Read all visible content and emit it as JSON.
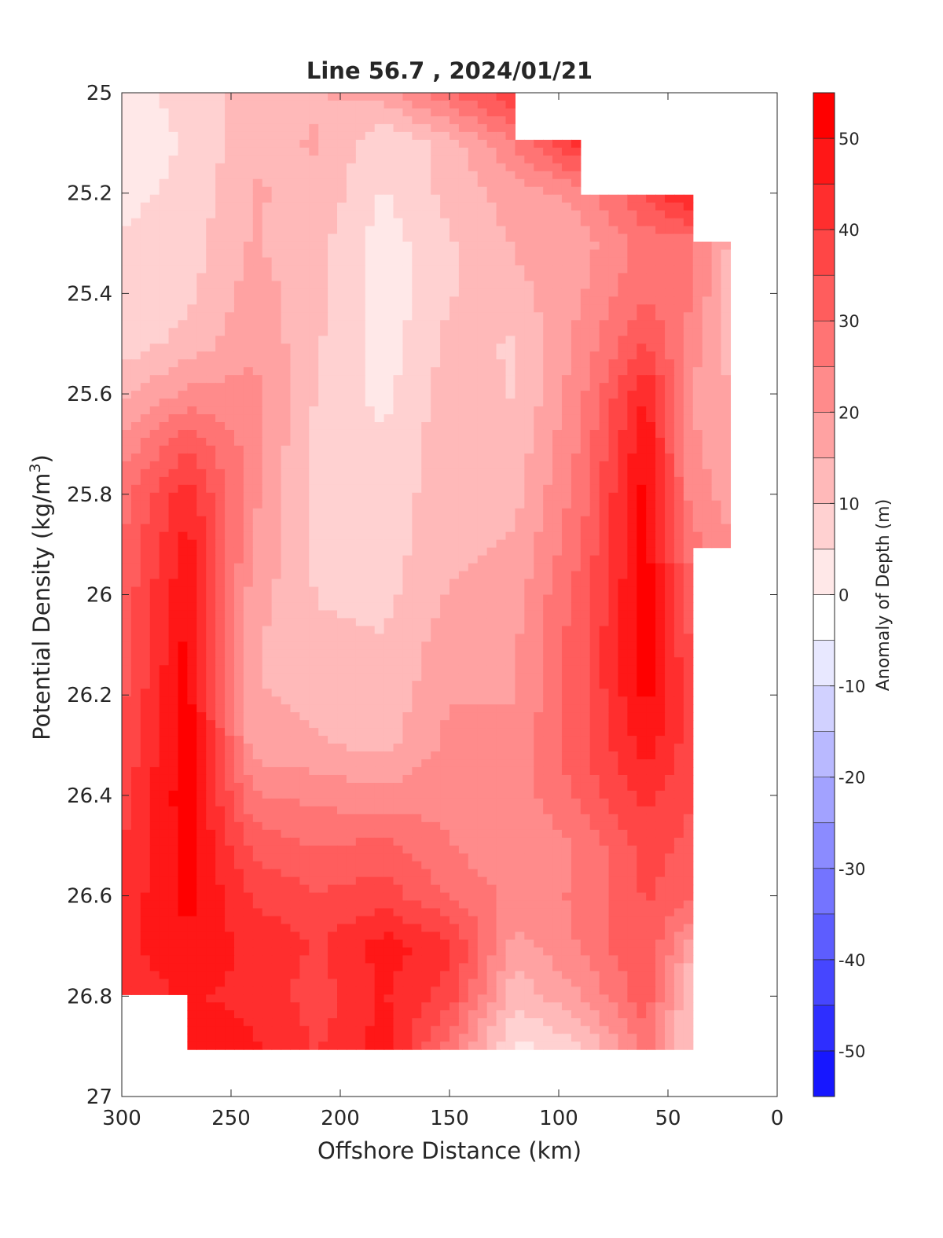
{
  "chart_data": {
    "type": "heatmap",
    "subtype": "filled-contour",
    "title": "Line 56.7 , 2024/01/21",
    "xlabel": "Offshore Distance (km)",
    "ylabel_main": "Potential Density (kg/m",
    "ylabel_sup": "3",
    "ylabel_close": ")",
    "colorbar_label": "Anomaly of Depth (m)",
    "x_reversed": true,
    "xlim": [
      300,
      0
    ],
    "ylim": [
      25,
      27
    ],
    "y_reversed": true,
    "xticks": [
      "300",
      "250",
      "200",
      "150",
      "100",
      "50",
      "0"
    ],
    "yticks": [
      "25",
      "25.2",
      "25.4",
      "25.6",
      "25.8",
      "26",
      "26.2",
      "26.4",
      "26.6",
      "26.8",
      "27"
    ],
    "clim": [
      -55,
      55
    ],
    "colorbar_ticks": [
      "50",
      "40",
      "30",
      "20",
      "10",
      "0",
      "-10",
      "-20",
      "-30",
      "-40",
      "-50"
    ],
    "colormap": {
      "negative": "#0000ff",
      "zero": "#ffffff",
      "positive": "#ff0000"
    },
    "x_stations_km": [
      300,
      270,
      240,
      210,
      180,
      150,
      120,
      90,
      60,
      40,
      20
    ],
    "density_levels": [
      25.0,
      25.1,
      25.2,
      25.3,
      25.4,
      25.5,
      25.6,
      25.7,
      25.8,
      25.9,
      26.0,
      26.1,
      26.2,
      26.3,
      26.4,
      26.5,
      26.6,
      26.7,
      26.8,
      26.9
    ],
    "anomaly_m": [
      [
        4,
        10,
        15,
        17,
        20,
        32,
        42,
        null,
        null,
        null,
        null
      ],
      [
        4,
        8,
        16,
        18,
        8,
        15,
        28,
        45,
        null,
        null,
        null
      ],
      [
        6,
        9,
        18,
        16,
        7,
        14,
        20,
        24,
        38,
        50,
        null
      ],
      [
        8,
        10,
        18,
        14,
        5,
        12,
        18,
        20,
        30,
        30,
        15
      ],
      [
        9,
        11,
        20,
        14,
        4,
        12,
        16,
        22,
        32,
        28,
        14
      ],
      [
        10,
        14,
        22,
        13,
        5,
        14,
        12,
        24,
        38,
        26,
        15
      ],
      [
        16,
        24,
        24,
        12,
        6,
        15,
        12,
        26,
        48,
        22,
        17
      ],
      [
        24,
        36,
        25,
        10,
        8,
        16,
        14,
        28,
        52,
        24,
        18
      ],
      [
        30,
        46,
        24,
        10,
        9,
        16,
        16,
        30,
        55,
        26,
        20
      ],
      [
        32,
        50,
        22,
        11,
        10,
        16,
        18,
        32,
        55,
        30,
        22
      ],
      [
        34,
        52,
        20,
        12,
        11,
        18,
        20,
        35,
        55,
        34,
        null
      ],
      [
        34,
        54,
        18,
        14,
        13,
        20,
        22,
        36,
        55,
        38,
        null
      ],
      [
        36,
        55,
        18,
        16,
        14,
        22,
        22,
        36,
        54,
        40,
        null
      ],
      [
        38,
        56,
        20,
        18,
        16,
        24,
        24,
        36,
        50,
        40,
        null
      ],
      [
        40,
        56,
        28,
        26,
        24,
        26,
        24,
        34,
        44,
        38,
        null
      ],
      [
        42,
        55,
        36,
        32,
        34,
        28,
        22,
        28,
        40,
        36,
        null
      ],
      [
        44,
        54,
        42,
        38,
        40,
        32,
        26,
        28,
        38,
        34,
        null
      ],
      [
        46,
        52,
        46,
        42,
        50,
        44,
        20,
        28,
        38,
        20,
        null
      ],
      [
        44,
        48,
        46,
        40,
        48,
        40,
        14,
        22,
        36,
        12,
        null
      ],
      [
        null,
        52,
        48,
        42,
        50,
        30,
        6,
        12,
        30,
        12,
        null
      ]
    ]
  }
}
